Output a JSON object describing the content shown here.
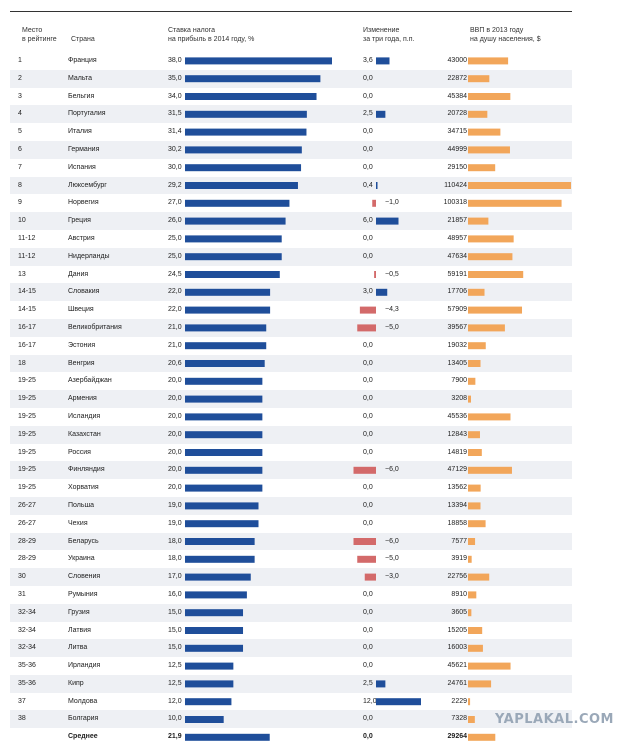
{
  "headers": {
    "rank": [
      "Место",
      "в рейтинге"
    ],
    "country": "Страна",
    "tax": [
      "Ставка налога",
      "на прибыль в 2014 году, %"
    ],
    "change": [
      "Изменение",
      "за три года, п.п."
    ],
    "gdp": [
      "ВВП в 2013 году",
      "на душу населения, $"
    ]
  },
  "colors": {
    "tax_bar": "#1f4e9a",
    "change_pos": "#1f4e9a",
    "change_neg": "#d36a6a",
    "gdp_bar": "#f2a65a",
    "shade": "#eef0f4"
  },
  "watermark": "YAPLAKAL.COM",
  "chart_data": {
    "type": "table",
    "rows": [
      {
        "rank": "1",
        "country": "Франция",
        "tax": "38,0",
        "change": "3,6",
        "gdp": "43000"
      },
      {
        "rank": "2",
        "country": "Мальта",
        "tax": "35,0",
        "change": "0,0",
        "gdp": "22872"
      },
      {
        "rank": "3",
        "country": "Бельгия",
        "tax": "34,0",
        "change": "0,0",
        "gdp": "45384"
      },
      {
        "rank": "4",
        "country": "Португалия",
        "tax": "31,5",
        "change": "2,5",
        "gdp": "20728"
      },
      {
        "rank": "5",
        "country": "Италия",
        "tax": "31,4",
        "change": "0,0",
        "gdp": "34715"
      },
      {
        "rank": "6",
        "country": "Германия",
        "tax": "30,2",
        "change": "0,0",
        "gdp": "44999"
      },
      {
        "rank": "7",
        "country": "Испания",
        "tax": "30,0",
        "change": "0,0",
        "gdp": "29150"
      },
      {
        "rank": "8",
        "country": "Люксембург",
        "tax": "29,2",
        "change": "0,4",
        "gdp": "110424"
      },
      {
        "rank": "9",
        "country": "Норвегия",
        "tax": "27,0",
        "change": "−1,0",
        "gdp": "100318"
      },
      {
        "rank": "10",
        "country": "Греция",
        "tax": "26,0",
        "change": "6,0",
        "gdp": "21857"
      },
      {
        "rank": "11-12",
        "country": "Австрия",
        "tax": "25,0",
        "change": "0,0",
        "gdp": "48957"
      },
      {
        "rank": "11-12",
        "country": "Нидерланды",
        "tax": "25,0",
        "change": "0,0",
        "gdp": "47634"
      },
      {
        "rank": "13",
        "country": "Дания",
        "tax": "24,5",
        "change": "−0,5",
        "gdp": "59191"
      },
      {
        "rank": "14-15",
        "country": "Словакия",
        "tax": "22,0",
        "change": "3,0",
        "gdp": "17706"
      },
      {
        "rank": "14-15",
        "country": "Швеция",
        "tax": "22,0",
        "change": "−4,3",
        "gdp": "57909"
      },
      {
        "rank": "16-17",
        "country": "Великобритания",
        "tax": "21,0",
        "change": "−5,0",
        "gdp": "39567"
      },
      {
        "rank": "16-17",
        "country": "Эстония",
        "tax": "21,0",
        "change": "0,0",
        "gdp": "19032"
      },
      {
        "rank": "18",
        "country": "Венгрия",
        "tax": "20,6",
        "change": "0,0",
        "gdp": "13405"
      },
      {
        "rank": "19-25",
        "country": "Азербайджан",
        "tax": "20,0",
        "change": "0,0",
        "gdp": "7900"
      },
      {
        "rank": "19-25",
        "country": "Армения",
        "tax": "20,0",
        "change": "0,0",
        "gdp": "3208"
      },
      {
        "rank": "19-25",
        "country": "Исландия",
        "tax": "20,0",
        "change": "0,0",
        "gdp": "45536"
      },
      {
        "rank": "19-25",
        "country": "Казахстан",
        "tax": "20,0",
        "change": "0,0",
        "gdp": "12843"
      },
      {
        "rank": "19-25",
        "country": "Россия",
        "tax": "20,0",
        "change": "0,0",
        "gdp": "14819"
      },
      {
        "rank": "19-25",
        "country": "Финляндия",
        "tax": "20,0",
        "change": "−6,0",
        "gdp": "47129"
      },
      {
        "rank": "19-25",
        "country": "Хорватия",
        "tax": "20,0",
        "change": "0,0",
        "gdp": "13562"
      },
      {
        "rank": "26-27",
        "country": "Польша",
        "tax": "19,0",
        "change": "0,0",
        "gdp": "13394"
      },
      {
        "rank": "26-27",
        "country": "Чехия",
        "tax": "19,0",
        "change": "0,0",
        "gdp": "18858"
      },
      {
        "rank": "28-29",
        "country": "Беларусь",
        "tax": "18,0",
        "change": "−6,0",
        "gdp": "7577"
      },
      {
        "rank": "28-29",
        "country": "Украина",
        "tax": "18,0",
        "change": "−5,0",
        "gdp": "3919"
      },
      {
        "rank": "30",
        "country": "Словения",
        "tax": "17,0",
        "change": "−3,0",
        "gdp": "22756"
      },
      {
        "rank": "31",
        "country": "Румыния",
        "tax": "16,0",
        "change": "0,0",
        "gdp": "8910"
      },
      {
        "rank": "32-34",
        "country": "Грузия",
        "tax": "15,0",
        "change": "0,0",
        "gdp": "3605"
      },
      {
        "rank": "32-34",
        "country": "Латвия",
        "tax": "15,0",
        "change": "0,0",
        "gdp": "15205"
      },
      {
        "rank": "32-34",
        "country": "Литва",
        "tax": "15,0",
        "change": "0,0",
        "gdp": "16003"
      },
      {
        "rank": "35-36",
        "country": "Ирландия",
        "tax": "12,5",
        "change": "0,0",
        "gdp": "45621"
      },
      {
        "rank": "35-36",
        "country": "Кипр",
        "tax": "12,5",
        "change": "2,5",
        "gdp": "24761"
      },
      {
        "rank": "37",
        "country": "Молдова",
        "tax": "12,0",
        "change": "12,0",
        "gdp": "2229"
      },
      {
        "rank": "38",
        "country": "Болгария",
        "tax": "10,0",
        "change": "0,0",
        "gdp": "7328"
      }
    ],
    "average": {
      "label": "Среднее",
      "tax": "21,9",
      "change": "0,0",
      "gdp": "29264"
    }
  }
}
